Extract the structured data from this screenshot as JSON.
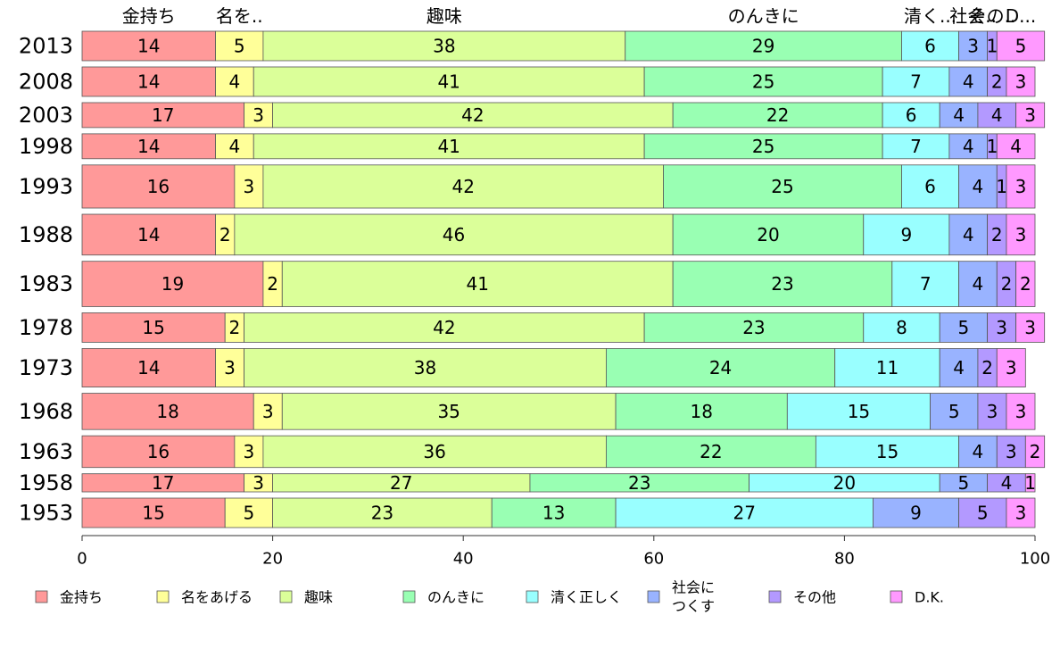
{
  "chart_data": {
    "type": "bar",
    "orientation": "horizontal",
    "stacked": true,
    "categories": [
      "2013",
      "2008",
      "2003",
      "1998",
      "1993",
      "1988",
      "1983",
      "1978",
      "1973",
      "1968",
      "1963",
      "1958",
      "1953"
    ],
    "series": [
      {
        "name": "金持ち",
        "top_label": "金持ち",
        "color": "#ff9999",
        "values": [
          14,
          14,
          17,
          14,
          16,
          14,
          19,
          15,
          14,
          18,
          16,
          17,
          15
        ]
      },
      {
        "name": "名をあげる",
        "top_label": "名を..",
        "color": "#ffff99",
        "values": [
          5,
          4,
          3,
          4,
          3,
          2,
          2,
          2,
          3,
          3,
          3,
          3,
          5
        ]
      },
      {
        "name": "趣味",
        "top_label": "趣味",
        "color": "#dbff99",
        "values": [
          38,
          41,
          42,
          41,
          42,
          46,
          41,
          42,
          38,
          35,
          36,
          27,
          23
        ]
      },
      {
        "name": "のんきに",
        "top_label": "のんきに",
        "color": "#99ffb3",
        "values": [
          29,
          25,
          22,
          25,
          25,
          20,
          23,
          23,
          24,
          18,
          22,
          23,
          13
        ]
      },
      {
        "name": "清く正しく",
        "top_label": "清く...",
        "color": "#99ffff",
        "values": [
          6,
          7,
          6,
          7,
          6,
          9,
          7,
          8,
          11,
          15,
          15,
          20,
          27
        ]
      },
      {
        "name": "社会につくす",
        "top_label": "社会..",
        "color": "#99b3ff",
        "values": [
          3,
          4,
          4,
          4,
          4,
          4,
          4,
          5,
          4,
          5,
          4,
          5,
          9
        ]
      },
      {
        "name": "その他",
        "top_label": "その..",
        "color": "#b399ff",
        "values": [
          1,
          2,
          4,
          1,
          1,
          2,
          2,
          3,
          2,
          3,
          3,
          4,
          5
        ]
      },
      {
        "name": "D.K.",
        "top_label": "D...",
        "color": "#ff99ff",
        "values": [
          5,
          3,
          3,
          4,
          3,
          3,
          2,
          3,
          3,
          3,
          2,
          1,
          3
        ]
      }
    ],
    "bar_weights": [
      1.3,
      1.3,
      1.1,
      1.1,
      1.9,
      1.8,
      2.0,
      1.3,
      1.7,
      1.6,
      1.4,
      0.8,
      1.3
    ],
    "xlim": [
      0,
      100
    ],
    "xticks": [
      0,
      20,
      40,
      60,
      80,
      100
    ],
    "grid": false,
    "legend_position": "bottom",
    "legend_labels": [
      "金持ち",
      "名をあげる",
      "趣味",
      "のんきに",
      "清く正しく",
      "社会に\nつくす",
      "その他",
      "D.K."
    ]
  }
}
